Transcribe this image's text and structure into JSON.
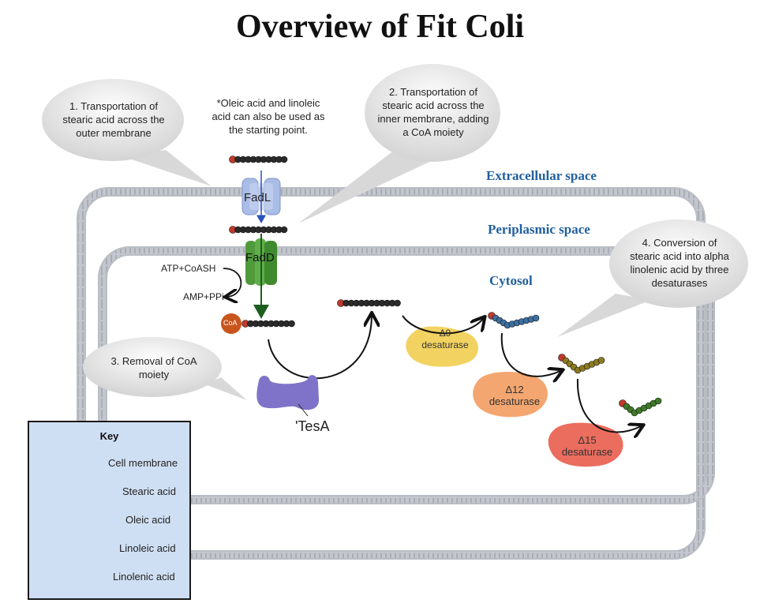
{
  "title": "Overview of Fit Coli",
  "regions": {
    "extracellular": "Extracellular space",
    "periplasmic": "Periplasmic space",
    "cytosol": "Cytosol"
  },
  "bubbles": {
    "step1": [
      "1. Transportation of",
      "stearic acid across the",
      "outer membrane"
    ],
    "step2": [
      "2. Transportation of",
      "stearic acid across the",
      "inner membrane, adding",
      "a CoA moiety"
    ],
    "step3": [
      "3. Removal of CoA",
      "moiety"
    ],
    "step4": [
      "4. Conversion of",
      "stearic acid into alpha",
      "linolenic acid by three",
      "desaturases"
    ]
  },
  "note": [
    "*Oleic acid and linoleic",
    "acid can also be used as",
    "the starting point."
  ],
  "proteins": {
    "fadl": "FadL",
    "fadd": "FadD",
    "tesa": "'TesA",
    "coa": "CoA"
  },
  "reaction": {
    "input": "ATP+CoASH",
    "output": "AMP+PPi"
  },
  "desaturases": {
    "d9": [
      "Δ9",
      "desaturase"
    ],
    "d12": [
      "Δ12",
      "desaturase"
    ],
    "d15": [
      "Δ15",
      "desaturase"
    ]
  },
  "key": {
    "title": "Key",
    "items": [
      "Cell membrane",
      "Stearic acid",
      "Oleic acid",
      "Linoleic acid",
      "Linolenic acid"
    ]
  },
  "colors": {
    "stearic": "#2b2b2b",
    "stearic_head": "#c0392b",
    "oleic": "#3d6fa0",
    "linoleic": "#8c7a22",
    "linolenic": "#3f7a2a",
    "region_text": "#1f5e9e",
    "membrane": "#b8bcc4",
    "d9": "#f2d261",
    "d12": "#f3a66f",
    "d15": "#ea6d5e",
    "fadl": "#aabde6",
    "fadd": "#4f9a3b",
    "tesa": "#7f73c9",
    "coa": "#c9541c",
    "key_bg": "#cfdff3"
  }
}
